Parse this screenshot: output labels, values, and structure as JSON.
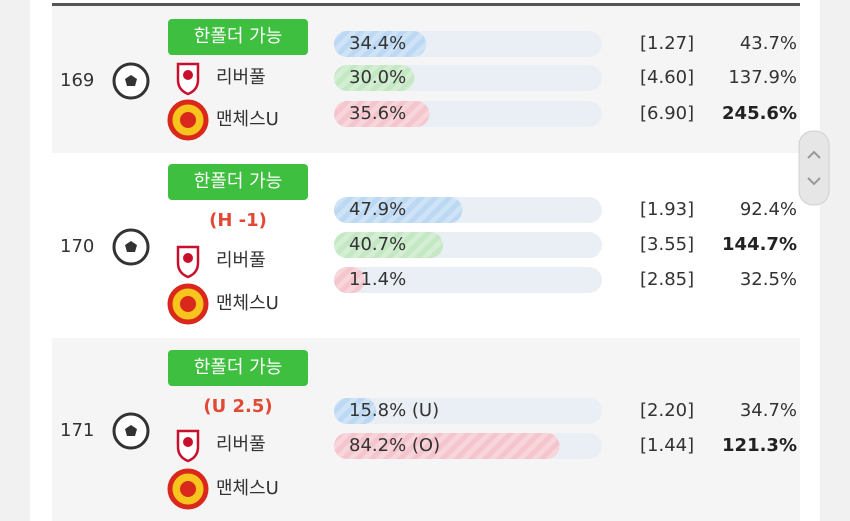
{
  "rows": [
    {
      "number": "169",
      "badge": "한폴더 가능",
      "teams": [
        "리버풀",
        "맨체스U"
      ],
      "outcomes": [
        {
          "value": 34.4,
          "label": "34.4%",
          "odds": "[1.27]",
          "payout": "43.7%"
        },
        {
          "value": 30.0,
          "label": "30.0%",
          "odds": "[4.60]",
          "payout": "137.9%"
        },
        {
          "value": 35.6,
          "label": "35.6%",
          "odds": "[6.90]",
          "payout": "245.6%",
          "bold": true
        }
      ]
    },
    {
      "number": "170",
      "badge": "한폴더 가능",
      "condition": "(H -1)",
      "teams": [
        "리버풀",
        "맨체스U"
      ],
      "outcomes": [
        {
          "value": 47.9,
          "label": "47.9%",
          "odds": "[1.93]",
          "payout": "92.4%"
        },
        {
          "value": 40.7,
          "label": "40.7%",
          "odds": "[3.55]",
          "payout": "144.7%",
          "bold": true
        },
        {
          "value": 11.4,
          "label": "11.4%",
          "odds": "[2.85]",
          "payout": "32.5%"
        }
      ]
    },
    {
      "number": "171",
      "badge": "한폴더 가능",
      "condition": "(U 2.5)",
      "teams": [
        "리버풀",
        "맨체스U"
      ],
      "outcomes": [
        {
          "value": 15.8,
          "label": "15.8% (U)",
          "odds": "[2.20]",
          "payout": "34.7%"
        },
        {
          "value": 84.2,
          "label": "84.2% (O)",
          "odds": "[1.44]",
          "payout": "121.3%",
          "bold": true
        }
      ]
    }
  ]
}
